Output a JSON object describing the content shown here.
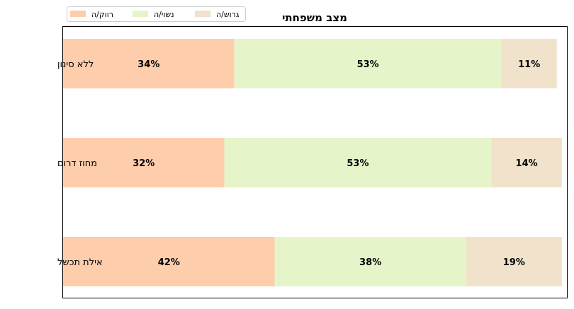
{
  "chart_data": {
    "type": "bar",
    "orientation": "horizontal",
    "stacked": true,
    "title": "מצב משפחתי",
    "categories": [
      "אילת תכשל",
      "מחוז דרום",
      "ללא סינון"
    ],
    "series": [
      {
        "name": "רווק/ה",
        "values": [
          42,
          32,
          34
        ],
        "color": "#fdcdac"
      },
      {
        "name": "נשוי/ה",
        "values": [
          38,
          53,
          53
        ],
        "color": "#e6f5c9"
      },
      {
        "name": "גרוש/ה",
        "values": [
          19,
          14,
          11
        ],
        "color": "#f1e2cc"
      }
    ],
    "value_suffix": "%",
    "xlim": [
      0,
      100
    ],
    "xticks": "none",
    "grid": false,
    "legend_position": "top-left"
  }
}
